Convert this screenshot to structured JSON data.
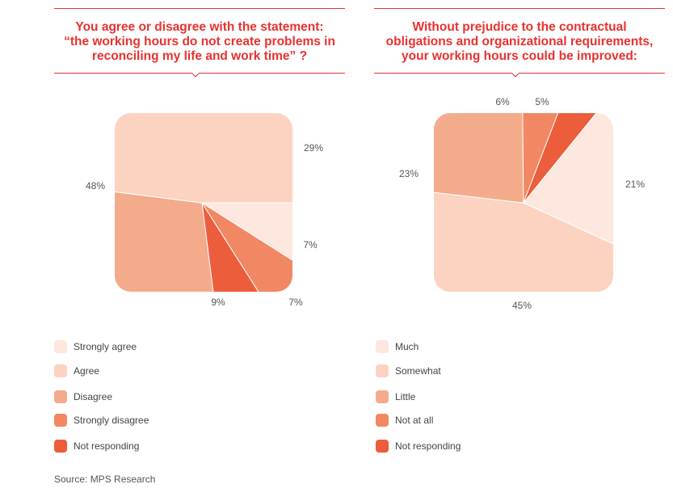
{
  "source": "Source: MPS Research",
  "chart_data": [
    {
      "type": "pie",
      "title": "You agree or disagree with the statement: “the working hours do not create problems in reconciling my life and work time” ?",
      "title_lines": [
        "You agree or disagree with the statement:",
        "“the working hours do not create problems in",
        "reconciling my life and work time” ?"
      ],
      "series": [
        {
          "label": "Strongly agree",
          "value": 9,
          "color": "#fde7df"
        },
        {
          "label": "Agree",
          "value": 48,
          "color": "#fbd3c0"
        },
        {
          "label": "Disagree",
          "value": 29,
          "color": "#f4ab8b"
        },
        {
          "label": "Strongly disagree",
          "value": 7,
          "color": "#f18863"
        },
        {
          "label": "Not responding",
          "value": 7,
          "color": "#ec5d3c"
        }
      ],
      "value_labels": [
        "9%",
        "48%",
        "29%",
        "7%",
        "7%"
      ]
    },
    {
      "type": "pie",
      "title": "Without prejudice to the contractual obligations and organizational requirements, your working hours could be improved:",
      "title_lines": [
        "Without prejudice to the contractual",
        "obligations and organizational requirements,",
        "your working hours could be improved:"
      ],
      "series": [
        {
          "label": "Much",
          "value": 21,
          "color": "#fde7df"
        },
        {
          "label": "Somewhat",
          "value": 45,
          "color": "#fbd3c0"
        },
        {
          "label": "Little",
          "value": 23,
          "color": "#f4ab8b"
        },
        {
          "label": "Not at all",
          "value": 6,
          "color": "#f18863"
        },
        {
          "label": "Not responding",
          "value": 5,
          "color": "#ec5d3c"
        }
      ],
      "value_labels": [
        "21%",
        "45%",
        "23%",
        "6%",
        "5%"
      ]
    }
  ]
}
